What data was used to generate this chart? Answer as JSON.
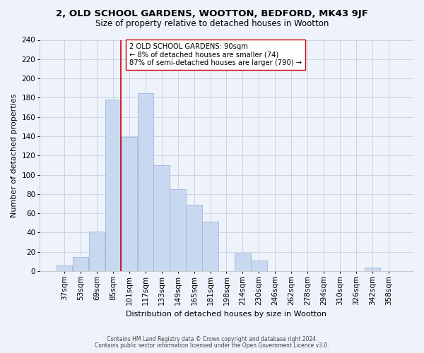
{
  "title": "2, OLD SCHOOL GARDENS, WOOTTON, BEDFORD, MK43 9JF",
  "subtitle": "Size of property relative to detached houses in Wootton",
  "xlabel": "Distribution of detached houses by size in Wootton",
  "ylabel": "Number of detached properties",
  "bar_labels": [
    "37sqm",
    "53sqm",
    "69sqm",
    "85sqm",
    "101sqm",
    "117sqm",
    "133sqm",
    "149sqm",
    "165sqm",
    "181sqm",
    "198sqm",
    "214sqm",
    "230sqm",
    "246sqm",
    "262sqm",
    "278sqm",
    "294sqm",
    "310sqm",
    "326sqm",
    "342sqm",
    "358sqm"
  ],
  "bar_values": [
    6,
    15,
    41,
    178,
    139,
    185,
    110,
    85,
    69,
    51,
    0,
    18,
    11,
    0,
    0,
    0,
    0,
    0,
    0,
    4,
    0
  ],
  "bar_color": "#c8d8f0",
  "bar_edge_color": "#a0b8d8",
  "vline_x": 3.5,
  "vline_color": "#cc0000",
  "annotation_box_text": "2 OLD SCHOOL GARDENS: 90sqm\n← 8% of detached houses are smaller (74)\n87% of semi-detached houses are larger (790) →",
  "box_edge_color": "#cc0000",
  "grid_color": "#c8d4e8",
  "background_color": "#eef2fa",
  "footer_line1": "Contains HM Land Registry data © Crown copyright and database right 2024.",
  "footer_line2": "Contains public sector information licensed under the Open Government Licence v3.0.",
  "ylim": [
    0,
    240
  ],
  "yticks": [
    0,
    20,
    40,
    60,
    80,
    100,
    120,
    140,
    160,
    180,
    200,
    220,
    240
  ],
  "title_fontsize": 9.5,
  "subtitle_fontsize": 8.5,
  "annotation_fontsize": 7.2,
  "axis_fontsize": 7.5,
  "ylabel_fontsize": 8,
  "xlabel_fontsize": 8
}
